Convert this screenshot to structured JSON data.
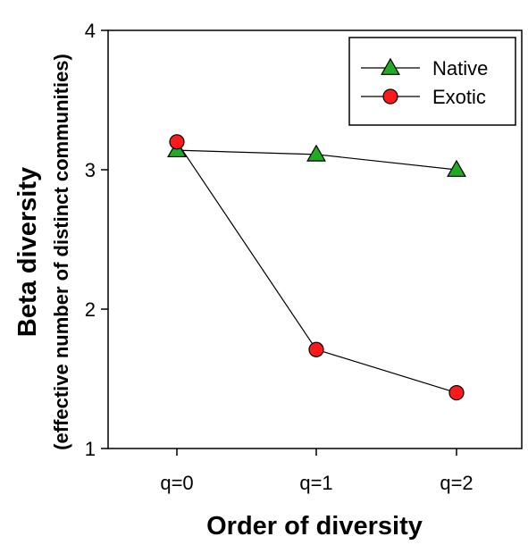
{
  "chart_data": {
    "type": "line",
    "categories": [
      "q=0",
      "q=1",
      "q=2"
    ],
    "series": [
      {
        "name": "Native",
        "values": [
          3.14,
          3.11,
          3.0
        ],
        "marker": "triangle",
        "color": "#22aa22"
      },
      {
        "name": "Exotic",
        "values": [
          3.2,
          1.71,
          1.4
        ],
        "marker": "circle",
        "color": "#ff1a1a"
      }
    ],
    "title": "",
    "xlabel": "Order of diversity",
    "ylabel": "Beta diversity",
    "ylabel_sub": "(effective number of distinct communities)",
    "ylim": [
      1,
      4
    ],
    "yticks": [
      "1",
      "2",
      "3",
      "4"
    ],
    "grid": false,
    "legend_position": "top-right"
  }
}
